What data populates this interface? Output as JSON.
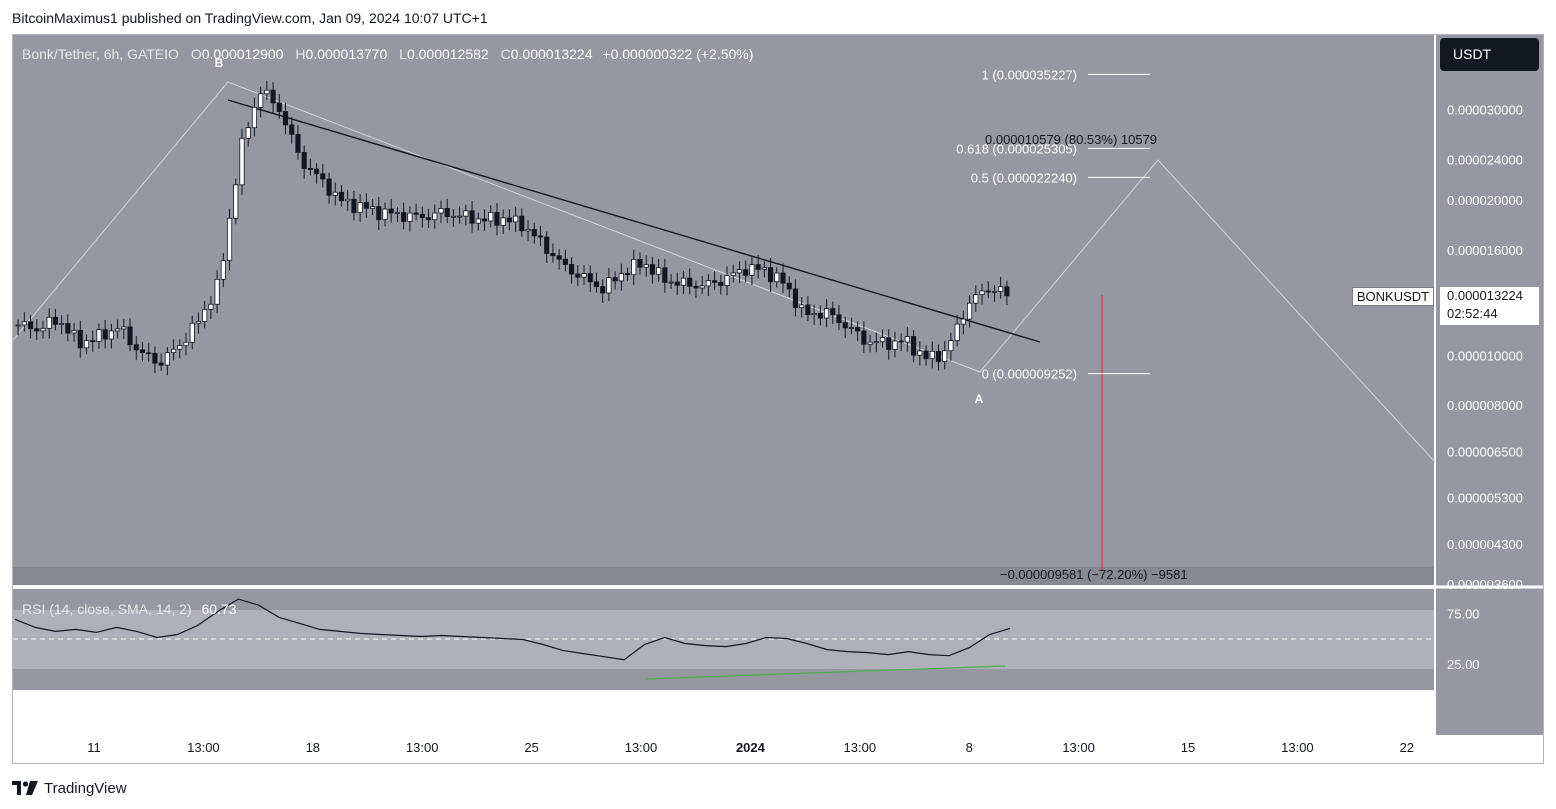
{
  "header": {
    "attribution": "BitcoinMaximus1 published on TradingView.com, Jan 09, 2024 10:07 UTC+1"
  },
  "symbol_info": {
    "name": "Bonk/Tether, 6h, GATEIO",
    "o_label": "O",
    "o_value": "0.000012900",
    "h_label": "H",
    "h_value": "0.000013770",
    "l_label": "L",
    "l_value": "0.000012582",
    "c_label": "C",
    "c_value": "0.000013224",
    "change": "+0.000000322 (+2.50%)"
  },
  "currency_button": "USDT",
  "symbol_tag": "BONKUSDT",
  "price_tag": {
    "price": "0.000013224",
    "countdown": "02:52:44"
  },
  "colors": {
    "pane_bg": "#9598a1",
    "up_candle": "#ffffff",
    "down_candle": "#131722",
    "trendline": "#131722",
    "rsi_line": "#131722",
    "divergence": "#4caf50",
    "projection": "#d1d4dc",
    "drop_line": "#d32f2f"
  },
  "footer": {
    "logo": "tradingview-logo-icon",
    "brand": "TradingView"
  },
  "chart_data": [
    {
      "type": "candlestick",
      "title": "Bonk/Tether, 6h, GATEIO",
      "y_scale": "log",
      "ylim": [
        3.6e-06,
        4.2e-05
      ],
      "y_ticks": [
        "0.000030000",
        "0.000024000",
        "0.000020000",
        "0.000016000",
        "0.000010000",
        "0.000008000",
        "0.000006500",
        "0.000005300",
        "0.000004300",
        "0.000003600"
      ],
      "x_ticks": [
        "11",
        "13:00",
        "18",
        "13:00",
        "25",
        "13:00",
        "2024",
        "13:00",
        "8",
        "13:00",
        "15",
        "13:00",
        "22"
      ],
      "close_path": [
        1.15e-05,
        1.13e-05,
        1.18e-05,
        1.06e-05,
        1.09e-05,
        1.14e-05,
        1.02e-05,
        9.7e-06,
        1.05e-05,
        1.18e-05,
        1.4e-05,
        2.5e-05,
        3.3e-05,
        3e-05,
        2.4e-05,
        2.2e-05,
        2e-05,
        1.95e-05,
        1.9e-05,
        1.88e-05,
        1.86e-05,
        1.9e-05,
        1.87e-05,
        1.84e-05,
        1.85e-05,
        1.8e-05,
        1.65e-05,
        1.5e-05,
        1.42e-05,
        1.35e-05,
        1.46e-05,
        1.52e-05,
        1.41e-05,
        1.38e-05,
        1.37e-05,
        1.41e-05,
        1.48e-05,
        1.47e-05,
        1.38e-05,
        1.2e-05,
        1.22e-05,
        1.15e-05,
        1.07e-05,
        1.06e-05,
        1.07e-05,
        9.9e-06,
        1.02e-05,
        1.25e-05,
        1.36e-05,
        1.32e-05
      ],
      "fib_levels": [
        {
          "label": "1 (0.000035227)",
          "value": 3.5227e-05
        },
        {
          "label": "0.618 (0.000025305)",
          "value": 2.5305e-05
        },
        {
          "label": "0.5 (0.000022240)",
          "value": 2.224e-05
        },
        {
          "label": "0 (0.000009252)",
          "value": 9.252e-06
        }
      ],
      "measure_up": "0.000010579 (80.53%) 10579",
      "measure_down": "−0.000009581 (−72.20%) −9581",
      "wave_labels": [
        "B",
        "A"
      ],
      "annotations": [
        "descending trendline",
        "breakout",
        "projected move up to 0.618 Fib then down"
      ]
    },
    {
      "type": "line",
      "title": "RSI (14, close, SMA, 14, 2)",
      "value_label": "60.73",
      "ylim": [
        0,
        100
      ],
      "y_ticks": [
        "75.00",
        "25.00"
      ],
      "band": [
        25,
        75
      ],
      "values": [
        70,
        62,
        58,
        60,
        57,
        62,
        58,
        52,
        55,
        64,
        78,
        90,
        84,
        72,
        66,
        60,
        58,
        56,
        55,
        54,
        53,
        54,
        53,
        52,
        51,
        50,
        45,
        39,
        36,
        33,
        30,
        45,
        52,
        46,
        44,
        43,
        46,
        52,
        51,
        46,
        40,
        38,
        37,
        35,
        38,
        35,
        34,
        42,
        55,
        61
      ],
      "divergence": "bullish (green line on RSI lows)"
    }
  ]
}
